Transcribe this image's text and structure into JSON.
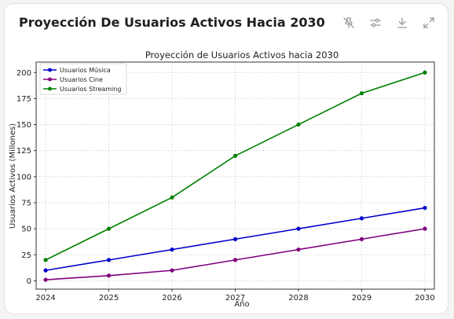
{
  "header": {
    "title": "Proyección De Usuarios Activos Hacia 2030"
  },
  "toolbar": {
    "icons": [
      "pin-off-icon",
      "sliders-icon",
      "download-icon",
      "expand-icon"
    ]
  },
  "chart_data": {
    "type": "line",
    "title": "Proyección de Usuarios Activos hacia 2030",
    "xlabel": "Año",
    "ylabel": "Usuarios Activos (Millones)",
    "x": [
      2024,
      2025,
      2026,
      2027,
      2028,
      2029,
      2030
    ],
    "xticks": [
      "2024",
      "2025",
      "2026",
      "2027",
      "2028",
      "2029",
      "2030"
    ],
    "yticks": [
      "0",
      "25",
      "50",
      "75",
      "100",
      "125",
      "150",
      "175",
      "200"
    ],
    "ylim": [
      -8,
      210
    ],
    "xlim": [
      2023.85,
      2030.15
    ],
    "grid": true,
    "legend_position": "top-left",
    "series": [
      {
        "name": "Usuarios Música",
        "color": "#0000cc",
        "values": [
          10,
          20,
          30,
          40,
          50,
          60,
          70
        ]
      },
      {
        "name": "Usuarios Cine",
        "color": "#800080",
        "values": [
          1,
          5,
          10,
          20,
          30,
          40,
          50
        ]
      },
      {
        "name": "Usuarios Streaming",
        "color": "#008000",
        "values": [
          20,
          50,
          80,
          120,
          150,
          180,
          200
        ]
      }
    ]
  }
}
